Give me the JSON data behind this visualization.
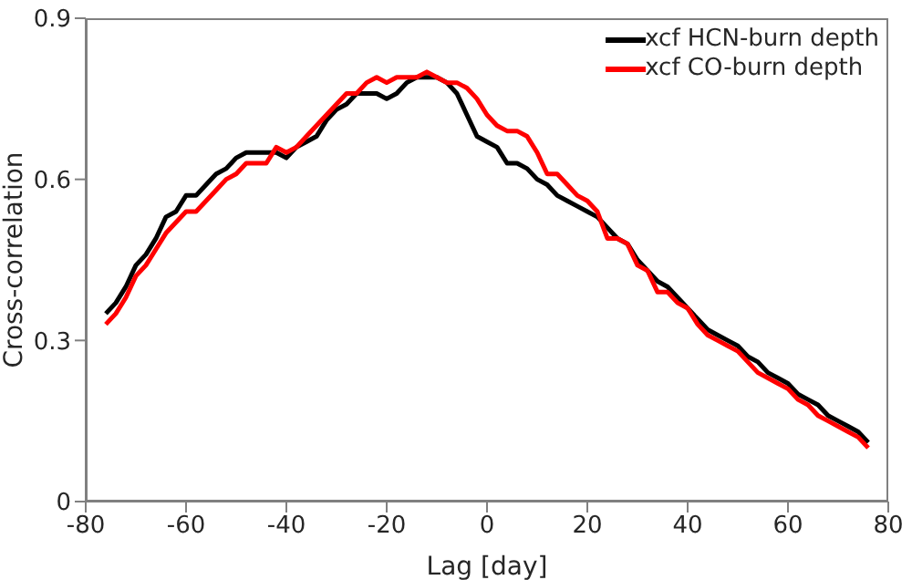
{
  "chart_data": {
    "type": "line",
    "xlabel": "Lag [day]",
    "ylabel": "Cross-correlation",
    "x": [
      -76,
      -74,
      -72,
      -70,
      -68,
      -66,
      -64,
      -62,
      -60,
      -58,
      -56,
      -54,
      -52,
      -50,
      -48,
      -46,
      -44,
      -42,
      -40,
      -38,
      -36,
      -34,
      -32,
      -30,
      -28,
      -26,
      -24,
      -22,
      -20,
      -18,
      -16,
      -14,
      -12,
      -10,
      -8,
      -6,
      -4,
      -2,
      0,
      2,
      4,
      6,
      8,
      10,
      12,
      14,
      16,
      18,
      20,
      22,
      24,
      26,
      28,
      30,
      32,
      34,
      36,
      38,
      40,
      42,
      44,
      46,
      48,
      50,
      52,
      54,
      56,
      58,
      60,
      62,
      64,
      66,
      68,
      70,
      72,
      74,
      76
    ],
    "series": [
      {
        "name": "xcf HCN-burn depth",
        "color": "#000000",
        "values": [
          0.35,
          0.37,
          0.4,
          0.44,
          0.46,
          0.49,
          0.53,
          0.54,
          0.57,
          0.57,
          0.59,
          0.61,
          0.62,
          0.64,
          0.65,
          0.65,
          0.65,
          0.65,
          0.64,
          0.66,
          0.67,
          0.68,
          0.71,
          0.73,
          0.74,
          0.76,
          0.76,
          0.76,
          0.75,
          0.76,
          0.78,
          0.79,
          0.79,
          0.79,
          0.78,
          0.76,
          0.72,
          0.68,
          0.67,
          0.66,
          0.63,
          0.63,
          0.62,
          0.6,
          0.59,
          0.57,
          0.56,
          0.55,
          0.54,
          0.53,
          0.51,
          0.49,
          0.48,
          0.45,
          0.43,
          0.41,
          0.4,
          0.38,
          0.36,
          0.34,
          0.32,
          0.31,
          0.3,
          0.29,
          0.27,
          0.26,
          0.24,
          0.23,
          0.22,
          0.2,
          0.19,
          0.18,
          0.16,
          0.15,
          0.14,
          0.13,
          0.11
        ]
      },
      {
        "name": "xcf CO-burn depth",
        "color": "#ff0000",
        "values": [
          0.33,
          0.35,
          0.38,
          0.42,
          0.44,
          0.47,
          0.5,
          0.52,
          0.54,
          0.54,
          0.56,
          0.58,
          0.6,
          0.61,
          0.63,
          0.63,
          0.63,
          0.66,
          0.65,
          0.66,
          0.68,
          0.7,
          0.72,
          0.74,
          0.76,
          0.76,
          0.78,
          0.79,
          0.78,
          0.79,
          0.79,
          0.79,
          0.8,
          0.79,
          0.78,
          0.78,
          0.77,
          0.75,
          0.72,
          0.7,
          0.69,
          0.69,
          0.68,
          0.65,
          0.61,
          0.61,
          0.59,
          0.57,
          0.56,
          0.54,
          0.49,
          0.49,
          0.48,
          0.44,
          0.43,
          0.39,
          0.39,
          0.37,
          0.36,
          0.33,
          0.31,
          0.3,
          0.29,
          0.28,
          0.26,
          0.24,
          0.23,
          0.22,
          0.21,
          0.19,
          0.18,
          0.16,
          0.15,
          0.14,
          0.13,
          0.12,
          0.1
        ]
      }
    ],
    "xlim": [
      -80,
      80
    ],
    "xticks": [
      -80,
      -60,
      -40,
      -20,
      0,
      20,
      40,
      60,
      80
    ],
    "ylim": [
      0,
      0.9
    ],
    "yticks": [
      0,
      0.3,
      0.6,
      0.9
    ],
    "grid": false,
    "legend": "top right",
    "marker": "none",
    "line_style": "solid"
  }
}
